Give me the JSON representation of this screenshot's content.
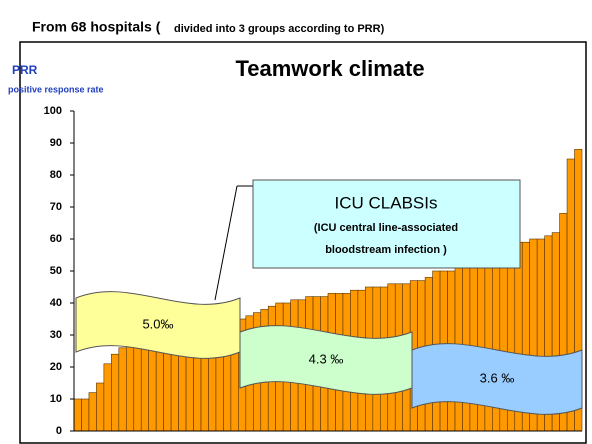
{
  "chart_data": {
    "type": "bar",
    "header": "From 68 hospitals (",
    "header_note": "divided into 3 groups according to PRR)",
    "title": "Teamwork climate",
    "y_label": "PRR",
    "y_label_sub": "positive response rate",
    "values": [
      10,
      10,
      12,
      15,
      21,
      24,
      26,
      27,
      28,
      29,
      30,
      30,
      31,
      31,
      32,
      32,
      33,
      33,
      33,
      34,
      34,
      35,
      35,
      36,
      37,
      38,
      39,
      40,
      40,
      41,
      41,
      42,
      42,
      42,
      43,
      43,
      43,
      44,
      44,
      45,
      45,
      45,
      46,
      46,
      46,
      47,
      47,
      48,
      50,
      50,
      50,
      51,
      52,
      53,
      54,
      55,
      56,
      57,
      58,
      59,
      59,
      60,
      60,
      61,
      62,
      68,
      85,
      88
    ],
    "color": "#ff9900",
    "ylim": [
      0,
      100
    ],
    "yticks": [
      0,
      10,
      20,
      30,
      40,
      50,
      60,
      70,
      80,
      90,
      100
    ],
    "callout": [
      "ICU CLABSIs",
      "(ICU central line-associated",
      "bloodstream infection )"
    ],
    "groups": [
      {
        "label": "5.0‰",
        "color": "#ffff99"
      },
      {
        "label": "4.3 ‰",
        "color": "#ccffcc"
      },
      {
        "label": "3.6 ‰",
        "color": "#99ccff"
      }
    ]
  }
}
